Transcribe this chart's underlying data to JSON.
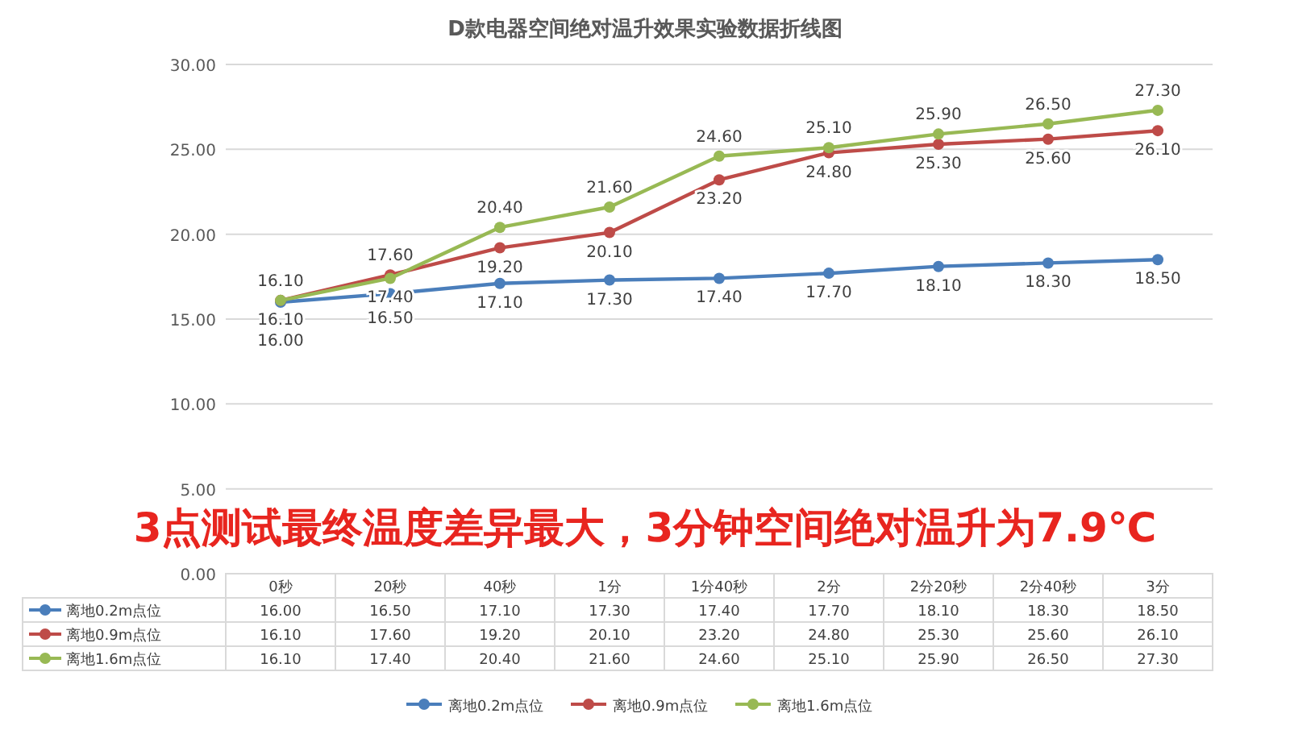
{
  "chart_data": {
    "type": "line",
    "title": "D款电器空间绝对温升效果实验数据折线图",
    "categories": [
      "0秒",
      "20秒",
      "40秒",
      "1分",
      "1分40秒",
      "2分",
      "2分20秒",
      "2分40秒",
      "3分"
    ],
    "series": [
      {
        "name": "离地0.2m点位",
        "color": "#4a7ebb",
        "values": [
          16.0,
          16.5,
          17.1,
          17.3,
          17.4,
          17.7,
          18.1,
          18.3,
          18.5
        ],
        "value_labels": [
          "16.00",
          "16.50",
          "17.10",
          "17.30",
          "17.40",
          "17.70",
          "18.10",
          "18.30",
          "18.50"
        ]
      },
      {
        "name": "离地0.9m点位",
        "color": "#be4b48",
        "values": [
          16.1,
          17.6,
          19.2,
          20.1,
          23.2,
          24.8,
          25.3,
          25.6,
          26.1
        ],
        "value_labels": [
          "16.10",
          "17.60",
          "19.20",
          "20.10",
          "23.20",
          "24.80",
          "25.30",
          "25.60",
          "26.10"
        ]
      },
      {
        "name": "离地1.6m点位",
        "color": "#98b954",
        "values": [
          16.1,
          17.4,
          20.4,
          21.6,
          24.6,
          25.1,
          25.9,
          26.5,
          27.3
        ],
        "value_labels": [
          "16.10",
          "17.40",
          "20.40",
          "21.60",
          "24.60",
          "25.10",
          "25.90",
          "26.50",
          "27.30"
        ]
      }
    ],
    "ylim": [
      0,
      30
    ],
    "yticks": [
      {
        "value": 0,
        "label": "0.00"
      },
      {
        "value": 5,
        "label": "5.00"
      },
      {
        "value": 10,
        "label": "10.00"
      },
      {
        "value": 15,
        "label": "15.00"
      },
      {
        "value": 20,
        "label": "20.00"
      },
      {
        "value": 25,
        "label": "25.00"
      },
      {
        "value": 30,
        "label": "30.00"
      }
    ],
    "grid": "y",
    "legend": "bottom",
    "marker": "circle",
    "line_style": "solid",
    "annotations": [
      "3点测试最终温度差异最大，3分钟空间绝对温升为7.9℃"
    ]
  }
}
